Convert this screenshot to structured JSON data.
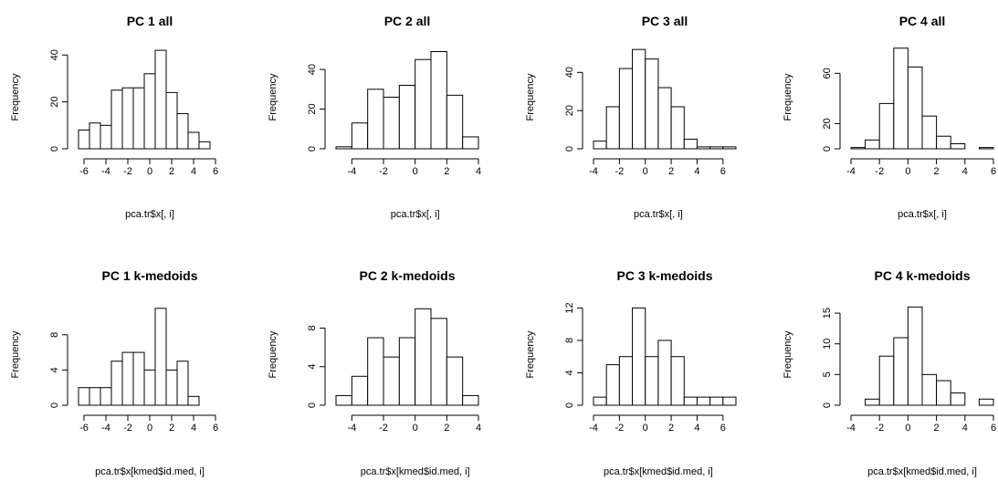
{
  "chart_data": [
    {
      "type": "bar",
      "title": "PC 1 all",
      "xlabel": "pca.tr$x[, i]",
      "ylabel": "Frequency",
      "bin_edges": [
        -6.5,
        -5.5,
        -4.5,
        -3.5,
        -2.5,
        -1.5,
        -0.5,
        0.5,
        1.5,
        2.5,
        3.5,
        4.5,
        5.5,
        6.5
      ],
      "values": [
        8,
        11,
        10,
        25,
        26,
        26,
        32,
        42,
        24,
        15,
        7,
        3,
        0
      ],
      "xlim": [
        -6.5,
        6.5
      ],
      "ylim": [
        0,
        44
      ],
      "xticks": [
        -6,
        -4,
        -2,
        0,
        2,
        4,
        6
      ],
      "yticks": [
        0,
        20,
        40
      ]
    },
    {
      "type": "bar",
      "title": "PC 2 all",
      "xlabel": "pca.tr$x[, i]",
      "ylabel": "Frequency",
      "bin_edges": [
        -5,
        -4,
        -3,
        -2,
        -1,
        0,
        1,
        2,
        3,
        4
      ],
      "values": [
        1,
        13,
        30,
        26,
        32,
        45,
        49,
        27,
        6
      ],
      "xlim": [
        -5,
        4
      ],
      "ylim": [
        0,
        52
      ],
      "xticks": [
        -4,
        -2,
        0,
        2,
        4
      ],
      "yticks": [
        0,
        20,
        40
      ]
    },
    {
      "type": "bar",
      "title": "PC 3 all",
      "xlabel": "pca.tr$x[, i]",
      "ylabel": "Frequency",
      "bin_edges": [
        -4,
        -3,
        -2,
        -1,
        0,
        1,
        2,
        3,
        4,
        5,
        6,
        7
      ],
      "values": [
        4,
        22,
        42,
        52,
        47,
        32,
        22,
        5,
        1,
        1,
        1
      ],
      "xlim": [
        -4,
        7
      ],
      "ylim": [
        0,
        54
      ],
      "xticks": [
        -4,
        -2,
        0,
        2,
        4,
        6
      ],
      "yticks": [
        0,
        20,
        40
      ]
    },
    {
      "type": "bar",
      "title": "PC 4 all",
      "xlabel": "pca.tr$x[, i]",
      "ylabel": "Frequency",
      "bin_edges": [
        -4,
        -3,
        -2,
        -1,
        0,
        1,
        2,
        3,
        4,
        5,
        6
      ],
      "values": [
        1,
        7,
        36,
        80,
        65,
        26,
        10,
        4,
        0,
        1
      ],
      "xlim": [
        -4,
        6
      ],
      "ylim": [
        0,
        82
      ],
      "xticks": [
        -4,
        -2,
        0,
        2,
        4,
        6
      ],
      "yticks": [
        0,
        20,
        60
      ]
    },
    {
      "type": "bar",
      "title": "PC 1 k-medoids",
      "xlabel": "pca.tr$x[kmed$id.med, i]",
      "ylabel": "Frequency",
      "bin_edges": [
        -6.5,
        -5.5,
        -4.5,
        -3.5,
        -2.5,
        -1.5,
        -0.5,
        0.5,
        1.5,
        2.5,
        3.5,
        4.5,
        5.5,
        6.5
      ],
      "values": [
        2,
        2,
        2,
        5,
        6,
        6,
        4,
        11,
        4,
        5,
        1,
        0,
        0
      ],
      "xlim": [
        -6.5,
        6.5
      ],
      "ylim": [
        0,
        11.5
      ],
      "xticks": [
        -6,
        -4,
        -2,
        0,
        2,
        4,
        6
      ],
      "yticks": [
        0,
        4,
        8
      ]
    },
    {
      "type": "bar",
      "title": "PC 2 k-medoids",
      "xlabel": "pca.tr$x[kmed$id.med, i]",
      "ylabel": "Frequency",
      "bin_edges": [
        -5,
        -4,
        -3,
        -2,
        -1,
        0,
        1,
        2,
        3,
        4
      ],
      "values": [
        1,
        3,
        7,
        5,
        7,
        10,
        9,
        5,
        1
      ],
      "xlim": [
        -5,
        4
      ],
      "ylim": [
        0,
        10.5
      ],
      "xticks": [
        -4,
        -2,
        0,
        2,
        4
      ],
      "yticks": [
        0,
        4,
        8
      ]
    },
    {
      "type": "bar",
      "title": "PC 3 k-medoids",
      "xlabel": "pca.tr$x[kmed$id.med, i]",
      "ylabel": "Frequency",
      "bin_edges": [
        -4,
        -3,
        -2,
        -1,
        0,
        1,
        2,
        3,
        4,
        5,
        6,
        7
      ],
      "values": [
        1,
        5,
        6,
        12,
        6,
        8,
        6,
        1,
        1,
        1,
        1
      ],
      "xlim": [
        -4,
        7
      ],
      "ylim": [
        0,
        12.5
      ],
      "xticks": [
        -4,
        -2,
        0,
        2,
        4,
        6
      ],
      "yticks": [
        0,
        4,
        8,
        12
      ]
    },
    {
      "type": "bar",
      "title": "PC 4 k-medoids",
      "xlabel": "pca.tr$x[kmed$id.med, i]",
      "ylabel": "Frequency",
      "bin_edges": [
        -4,
        -3,
        -2,
        -1,
        0,
        1,
        2,
        3,
        4,
        5,
        6
      ],
      "values": [
        0,
        1,
        8,
        11,
        16,
        5,
        4,
        2,
        0,
        1
      ],
      "xlim": [
        -4,
        6
      ],
      "ylim": [
        0,
        16.5
      ],
      "xticks": [
        -4,
        -2,
        0,
        2,
        4,
        6
      ],
      "yticks": [
        0,
        5,
        10,
        15
      ]
    }
  ]
}
